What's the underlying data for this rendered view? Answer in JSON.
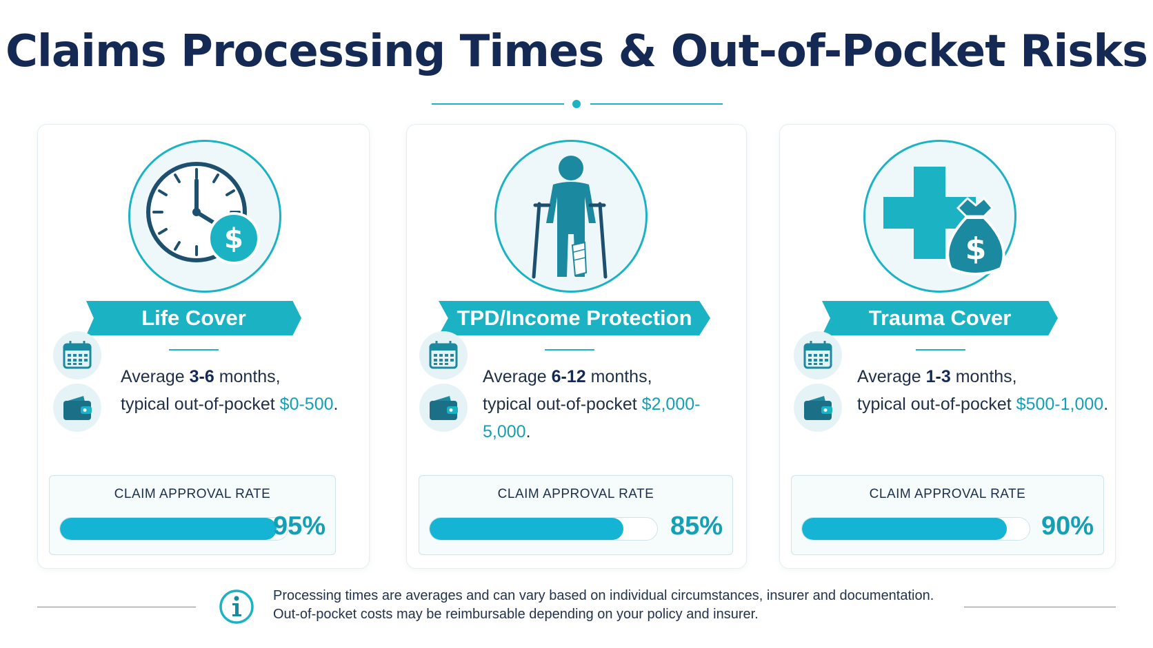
{
  "title": "Claims Processing Times & Out-of-Pocket Risks",
  "accent_color": "#1bb3c4",
  "cards": [
    {
      "icon": "clock-dollar-icon",
      "name": "Life Cover",
      "desc_prefix": "Average ",
      "duration": "3-6",
      "desc_mid": " months,",
      "cost_label": "typical out-of-pocket ",
      "cost": "$0-500",
      "cost_suffix": ".",
      "rate_label": "CLAIM APPROVAL RATE",
      "rate": 95,
      "rate_text": "95%"
    },
    {
      "icon": "person-crutches-icon",
      "name": "TPD/Income Protection",
      "desc_prefix": "Average ",
      "duration": "6-12",
      "desc_mid": " months,",
      "cost_label": "typical out-of-pocket ",
      "cost": "$2,000-5,000",
      "cost_suffix": ".",
      "rate_label": "CLAIM APPROVAL RATE",
      "rate": 85,
      "rate_text": "85%"
    },
    {
      "icon": "medical-cross-moneybag-icon",
      "name": "Trauma Cover",
      "desc_prefix": "Average ",
      "duration": "1-3",
      "desc_mid": " months,",
      "cost_label": "typical out-of-pocket ",
      "cost": "$500-1,000",
      "cost_suffix": ".",
      "rate_label": "CLAIM APPROVAL RATE",
      "rate": 90,
      "rate_text": "90%"
    }
  ],
  "footer": {
    "line1": "Processing times are averages and can vary based on individual circumstances, insurer and documentation.",
    "line2": "Out-of-pocket costs may be reimbursable depending on your policy and insurer."
  }
}
